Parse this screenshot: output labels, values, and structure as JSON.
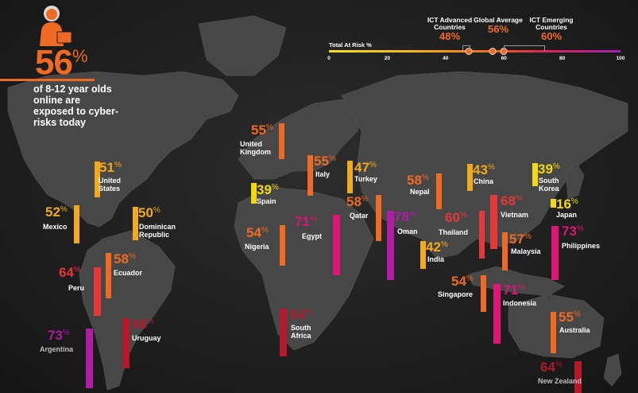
{
  "headline": {
    "value": "56",
    "unit": "%",
    "text": "of 8-12 year olds online are exposed to cyber-risks today"
  },
  "scale": {
    "title": "Total At Risk %",
    "ticks": [
      "0",
      "20",
      "40",
      "60",
      "80",
      "100"
    ],
    "min": 0,
    "max": 100,
    "markers": [
      {
        "label": "ICT Advanced Countries",
        "value": 48,
        "value_text": "48%"
      },
      {
        "label": "Global Average",
        "value": 56,
        "value_text": "56%"
      },
      {
        "label": "ICT Emerging Countries",
        "value": 60,
        "value_text": "60%"
      }
    ]
  },
  "colors": {
    "yellow": "#f5d80f",
    "amber": "#f3a91d",
    "orange": "#ef6a25",
    "red": "#e5383b",
    "crimson": "#b4182c",
    "magenta": "#e0157a",
    "purple": "#b01ca3",
    "accent": "#ef6a25"
  },
  "countries": [
    {
      "name": "United Kingdom",
      "value": "55",
      "color": "orange"
    },
    {
      "name": "United States",
      "value": "51",
      "color": "amber"
    },
    {
      "name": "Italy",
      "value": "55",
      "color": "orange"
    },
    {
      "name": "Turkey",
      "value": "47",
      "color": "amber"
    },
    {
      "name": "Spain",
      "value": "39",
      "color": "yellow"
    },
    {
      "name": "Nepal",
      "value": "58",
      "color": "orange"
    },
    {
      "name": "China",
      "value": "43",
      "color": "amber"
    },
    {
      "name": "South Korea",
      "value": "39",
      "color": "yellow"
    },
    {
      "name": "Japan",
      "value": "16",
      "color": "yellow"
    },
    {
      "name": "Mexico",
      "value": "52",
      "color": "amber"
    },
    {
      "name": "Dominican Republic",
      "value": "50",
      "color": "amber"
    },
    {
      "name": "Qatar",
      "value": "58",
      "color": "orange"
    },
    {
      "name": "Egypt",
      "value": "71",
      "color": "magenta"
    },
    {
      "name": "Oman",
      "value": "78",
      "color": "purple"
    },
    {
      "name": "Thailand",
      "value": "60",
      "color": "red"
    },
    {
      "name": "Vietnam",
      "value": "68",
      "color": "red"
    },
    {
      "name": "Nigeria",
      "value": "54",
      "color": "orange"
    },
    {
      "name": "India",
      "value": "42",
      "color": "amber"
    },
    {
      "name": "Malaysia",
      "value": "57",
      "color": "orange"
    },
    {
      "name": "Philippines",
      "value": "73",
      "color": "magenta"
    },
    {
      "name": "Peru",
      "value": "64",
      "color": "red"
    },
    {
      "name": "Ecuador",
      "value": "58",
      "color": "orange"
    },
    {
      "name": "Singapore",
      "value": "54",
      "color": "orange"
    },
    {
      "name": "Indonesia",
      "value": "71",
      "color": "magenta"
    },
    {
      "name": "South Africa",
      "value": "64",
      "color": "crimson"
    },
    {
      "name": "Argentina",
      "value": "73",
      "color": "purple"
    },
    {
      "name": "Uruguay",
      "value": "66",
      "color": "crimson"
    },
    {
      "name": "Australia",
      "value": "55",
      "color": "orange"
    },
    {
      "name": "New Zealand",
      "value": "64",
      "color": "crimson"
    }
  ]
}
